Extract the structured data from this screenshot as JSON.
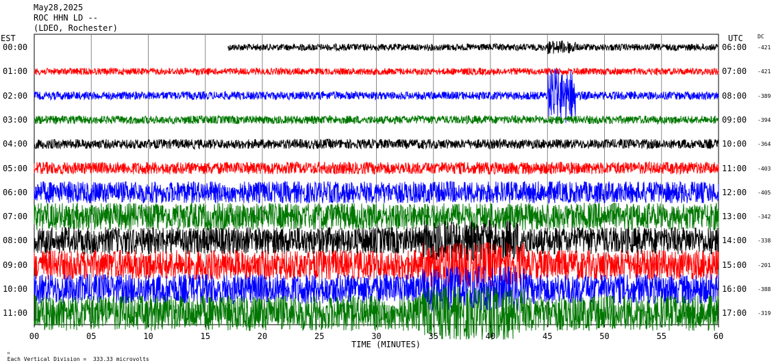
{
  "header": {
    "date": "May28,2025",
    "station": "ROC HHN LD --",
    "network": "(LDEO, Rochester)"
  },
  "left_axis_label": "EST",
  "right_axis_label": "UTC",
  "dc_label": "DC",
  "footer": {
    "scale_note": "Each Vertical Division =  333.33 microvolts"
  },
  "colors": {
    "cycle": [
      "#000000",
      "#ff0000",
      "#0000ff",
      "#007700"
    ],
    "grid": "#000000"
  },
  "chart_data": {
    "type": "line",
    "title": "",
    "xlabel": "TIME (MINUTES)",
    "ylabel": "",
    "xlim": [
      0,
      60
    ],
    "x_ticks": [
      "00",
      "05",
      "10",
      "15",
      "20",
      "25",
      "30",
      "35",
      "40",
      "45",
      "50",
      "55",
      "60"
    ],
    "grid": "vertical",
    "rows": [
      {
        "est": "00:00",
        "utc": "06:00",
        "dc": "-421",
        "color": "#000000",
        "start_minute": 17
      },
      {
        "est": "01:00",
        "utc": "07:00",
        "dc": "-421",
        "color": "#ff0000",
        "start_minute": 0
      },
      {
        "est": "02:00",
        "utc": "08:00",
        "dc": "-389",
        "color": "#0000ff",
        "start_minute": 0
      },
      {
        "est": "03:00",
        "utc": "09:00",
        "dc": "-394",
        "color": "#007700",
        "start_minute": 0
      },
      {
        "est": "04:00",
        "utc": "10:00",
        "dc": "-364",
        "color": "#000000",
        "start_minute": 0
      },
      {
        "est": "05:00",
        "utc": "11:00",
        "dc": "-403",
        "color": "#ff0000",
        "start_minute": 0
      },
      {
        "est": "06:00",
        "utc": "12:00",
        "dc": "-405",
        "color": "#0000ff",
        "start_minute": 0
      },
      {
        "est": "07:00",
        "utc": "13:00",
        "dc": "-342",
        "color": "#007700",
        "start_minute": 0
      },
      {
        "est": "08:00",
        "utc": "14:00",
        "dc": "-338",
        "color": "#000000",
        "start_minute": 0
      },
      {
        "est": "09:00",
        "utc": "15:00",
        "dc": "-201",
        "color": "#ff0000",
        "start_minute": 0
      },
      {
        "est": "10:00",
        "utc": "16:00",
        "dc": "-388",
        "color": "#0000ff",
        "start_minute": 0
      },
      {
        "est": "11:00",
        "utc": "17:00",
        "dc": "-319",
        "color": "#007700",
        "start_minute": 0
      }
    ]
  }
}
